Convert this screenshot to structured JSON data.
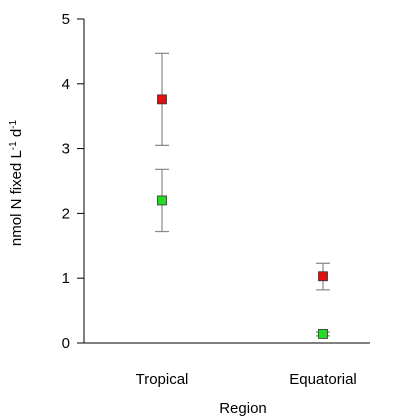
{
  "chart_data": {
    "type": "scatter",
    "categories": [
      "Tropical",
      "Equatorial"
    ],
    "xlabel": "Region",
    "ylabel": "nmol N fixed L-1 d-1",
    "ylabel_parts": {
      "base": "nmol N fixed L",
      "sup1": "-1",
      "mid": " d",
      "sup2": "-1"
    },
    "ylim": [
      0,
      5
    ],
    "yticks": [
      0,
      1,
      2,
      3,
      4,
      5
    ],
    "grid": false,
    "series": [
      {
        "color": "#e01010",
        "values": [
          3.76,
          1.03
        ],
        "err_low": [
          3.05,
          0.82
        ],
        "err_high": [
          4.47,
          1.23
        ]
      },
      {
        "color": "#22dd22",
        "values": [
          2.2,
          0.14
        ],
        "err_low": [
          1.72,
          0.11
        ],
        "err_high": [
          2.68,
          0.17
        ]
      }
    ]
  }
}
